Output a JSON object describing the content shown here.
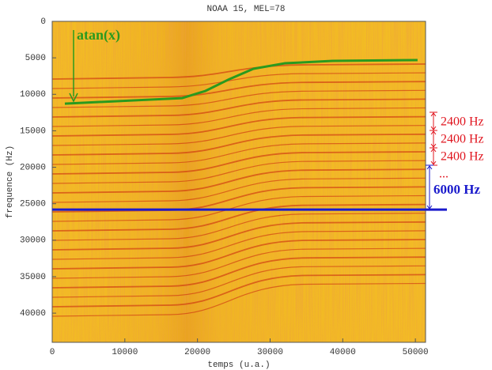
{
  "chart_data": {
    "type": "spectrogram",
    "title": "NOAA 15, MEL=78",
    "x_label": "temps (u.a.)",
    "y_label": "frequence (Hz)",
    "xlim": [
      0,
      51400
    ],
    "ylim": [
      0,
      44000
    ],
    "y_inverted": true,
    "xticks": [
      0,
      10000,
      20000,
      30000,
      40000,
      50000
    ],
    "yticks": [
      0,
      5000,
      10000,
      15000,
      20000,
      25000,
      30000,
      35000,
      40000
    ],
    "series": [
      {
        "name": "atan(x)",
        "color": "#2a9a1e",
        "x": [
          1740,
          17900,
          21100,
          24400,
          27700,
          32000,
          38600,
          50300
        ],
        "values": [
          11280,
          10520,
          9540,
          7920,
          6500,
          5750,
          5420,
          5310
        ]
      }
    ],
    "hline": {
      "value": 25800,
      "color": "#1a1acc"
    },
    "annotations": [
      {
        "text": "2400 Hz",
        "color": "#e0141e"
      },
      {
        "text": "2400 Hz",
        "color": "#e0141e"
      },
      {
        "text": "2400 Hz",
        "color": "#e0141e"
      },
      {
        "text": "...",
        "color": "#e0141e"
      },
      {
        "text": "6000 Hz",
        "color": "#1a1acc"
      }
    ]
  }
}
